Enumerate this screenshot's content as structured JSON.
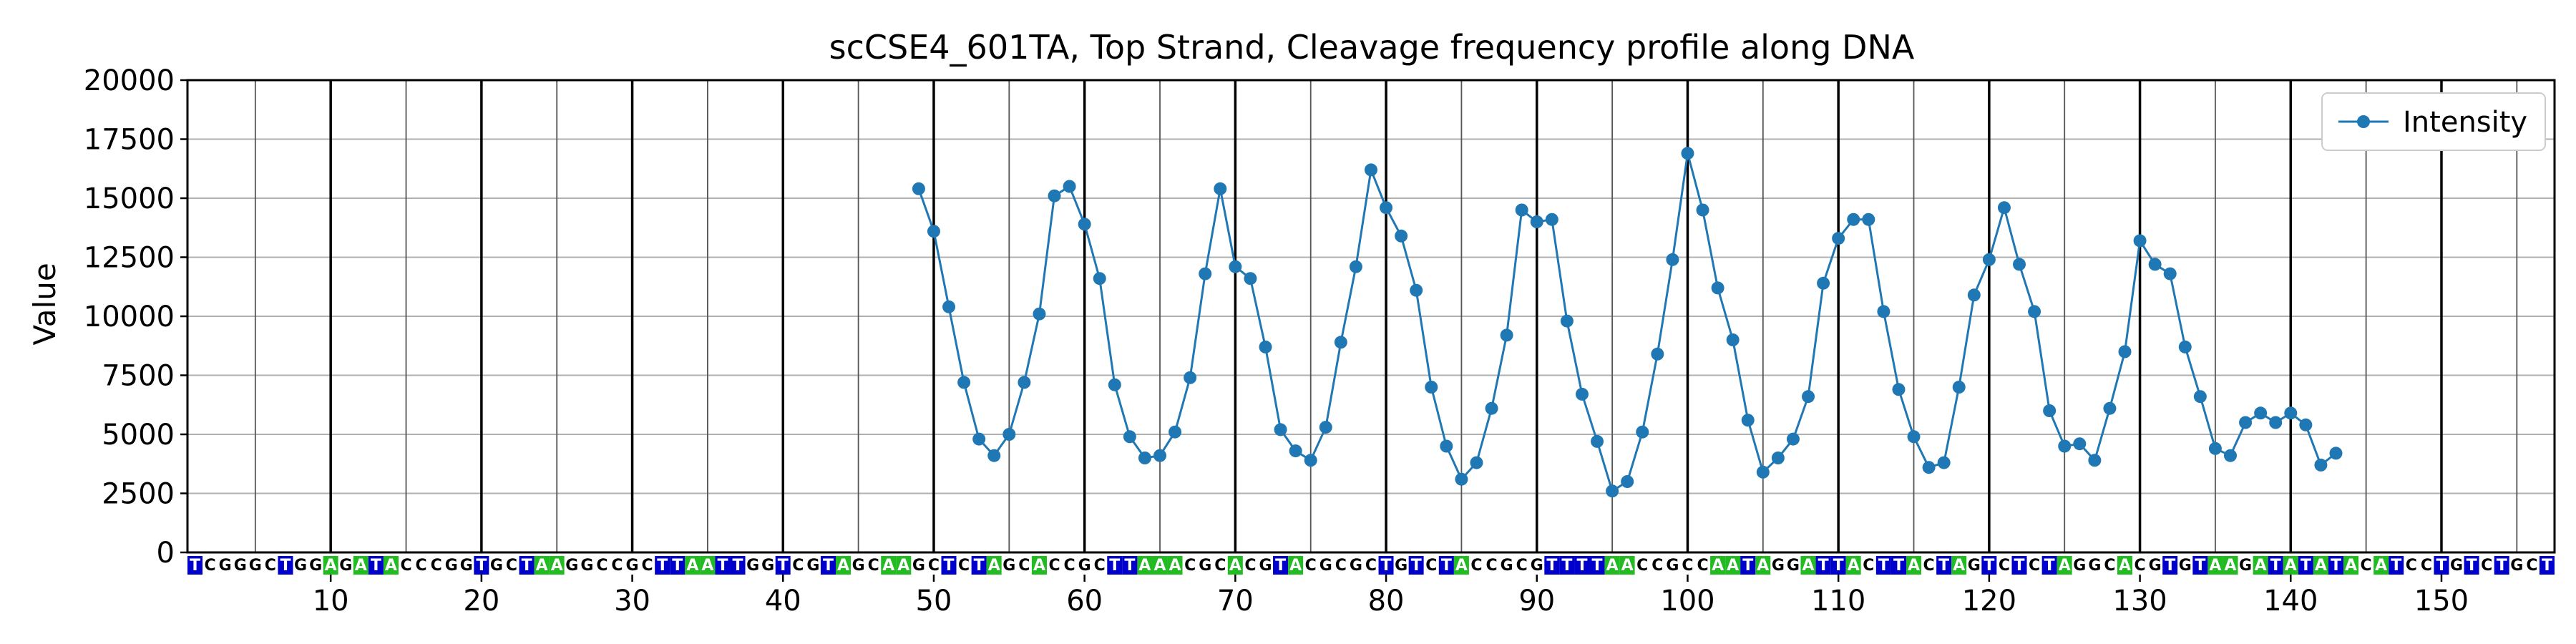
{
  "chart_data": {
    "type": "line",
    "title": "scCSE4_601TA, Top Strand, Cleavage frequency profile along DNA",
    "xlabel": "",
    "ylabel": "Value",
    "xlim": [
      0.5,
      157.5
    ],
    "ylim": [
      0,
      20000
    ],
    "yticks": [
      0,
      2500,
      5000,
      7500,
      10000,
      12500,
      15000,
      17500,
      20000
    ],
    "xticks": [
      10,
      20,
      30,
      40,
      50,
      60,
      70,
      80,
      90,
      100,
      110,
      120,
      130,
      140,
      150
    ],
    "grid": true,
    "legend_position": "top-right",
    "sequence": "TCGGGCTGGAGATACCCGGTGCTAAGGCCGCTTAATTGGTCGTAGCAAGCTCTAGCACCGCTTAAACGCACGTACGCGCTGTCTACCGCGTTTTAACCGCCAATAGGATTACTTACTAGTCTCTAGGCACGTGTAAGATATATACATCCTGTCTGCT",
    "base_colors": {
      "T": "#0000cc",
      "A": "#22bb22",
      "C": "#ffffff",
      "G": "#ffffff"
    },
    "series": [
      {
        "name": "Intensity",
        "color": "#1f77b4",
        "x": [
          49,
          50,
          51,
          52,
          53,
          54,
          55,
          56,
          57,
          58,
          59,
          60,
          61,
          62,
          63,
          64,
          65,
          66,
          67,
          68,
          69,
          70,
          71,
          72,
          73,
          74,
          75,
          76,
          77,
          78,
          79,
          80,
          81,
          82,
          83,
          84,
          85,
          86,
          87,
          88,
          89,
          90,
          91,
          92,
          93,
          94,
          95,
          96,
          97,
          98,
          99,
          100,
          101,
          102,
          103,
          104,
          105,
          106,
          107,
          108,
          109,
          110,
          111,
          112,
          113,
          114,
          115,
          116,
          117,
          118,
          119,
          120,
          121,
          122,
          123,
          124,
          125,
          126,
          127,
          128,
          129,
          130,
          131,
          132,
          133,
          134,
          135,
          136,
          137,
          138,
          139,
          140,
          141,
          142,
          143
        ],
        "values": [
          15400,
          13600,
          10400,
          7200,
          4800,
          4100,
          5000,
          7200,
          10100,
          15100,
          15500,
          13900,
          11600,
          7100,
          4900,
          4000,
          4100,
          5100,
          7400,
          11800,
          15400,
          12100,
          11600,
          8700,
          5200,
          4300,
          3900,
          5300,
          8900,
          12100,
          16200,
          14600,
          13400,
          11100,
          7000,
          4500,
          3100,
          3800,
          6100,
          9200,
          14500,
          14000,
          14100,
          9800,
          6700,
          4700,
          2600,
          3000,
          5100,
          8400,
          12400,
          16900,
          14500,
          11200,
          9000,
          5600,
          3400,
          4000,
          4800,
          6600,
          11400,
          13300,
          14100,
          14100,
          10200,
          6900,
          4900,
          3600,
          3800,
          7000,
          10900,
          12400,
          14600,
          12200,
          10200,
          6000,
          4500,
          4600,
          3900,
          6100,
          8500,
          13200,
          12200,
          11800,
          8700,
          6600,
          4400,
          4100,
          5500,
          5900,
          5500,
          5900,
          5400,
          3700,
          4200
        ]
      }
    ]
  }
}
